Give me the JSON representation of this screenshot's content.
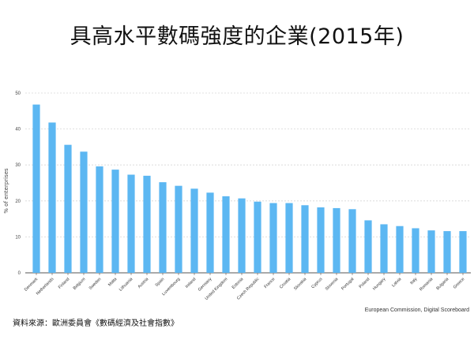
{
  "page": {
    "title": "具高水平數碼強度的企業(2015年)",
    "source_right": "European Commission, Digital Scoreboard",
    "source_left": "資料來源：歐洲委員會《數碼經濟及社會指數》"
  },
  "colors": {
    "bar": "#5cb7f2",
    "grid": "#d6d6d6",
    "axis": "#555555"
  },
  "chart_data": {
    "type": "bar",
    "title": "具高水平數碼強度的企業(2015年)",
    "xlabel": "",
    "ylabel": "% of enterprises",
    "ylim": [
      0,
      50
    ],
    "yticks": [
      0,
      10,
      20,
      30,
      40,
      50
    ],
    "grid": true,
    "categories": [
      "Denmark",
      "Netherlands",
      "Finland",
      "Belgium",
      "Sweden",
      "Malta",
      "Lithuania",
      "Austria",
      "Spain",
      "Luxembourg",
      "Ireland",
      "Germany",
      "United Kingdom",
      "Estonia",
      "Czech Republic",
      "France",
      "Croatia",
      "Slovakia",
      "Cyprus",
      "Slovenia",
      "Portugal",
      "Poland",
      "Hungary",
      "Latvia",
      "Italy",
      "Romania",
      "Bulgaria",
      "Greece"
    ],
    "values": [
      46.8,
      41.8,
      35.6,
      33.7,
      29.6,
      28.7,
      27.3,
      27.0,
      25.2,
      24.2,
      23.4,
      22.3,
      21.3,
      20.7,
      19.8,
      19.4,
      19.4,
      18.8,
      18.2,
      18.0,
      17.7,
      14.6,
      13.5,
      13.0,
      12.4,
      11.8,
      11.6,
      11.6
    ]
  }
}
